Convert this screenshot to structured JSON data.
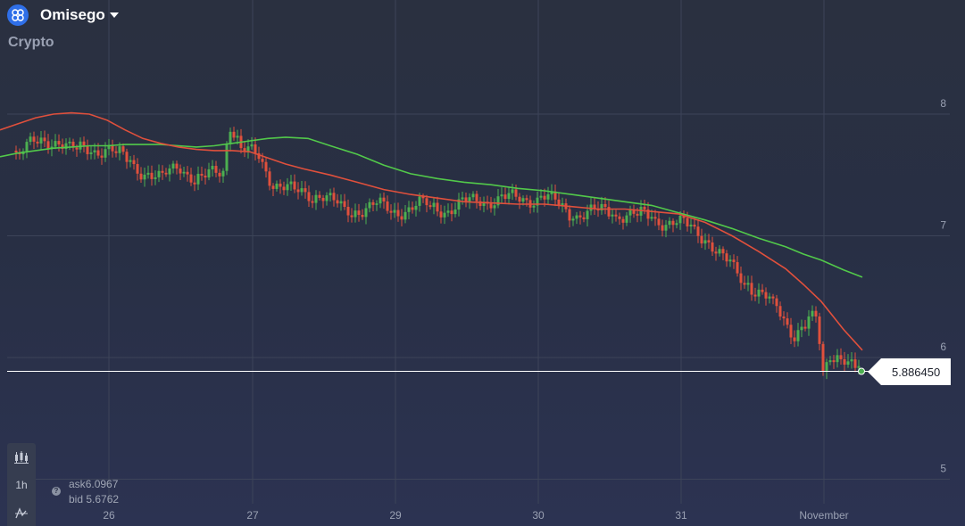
{
  "header": {
    "asset_name": "Omisego",
    "category": "Crypto",
    "logo_icon": "omisego-logo-icon"
  },
  "toolbar": {
    "timeframe_label": "1h",
    "chart_type_icon": "candlestick-chart-icon",
    "indicator_icon": "indicator-icon"
  },
  "quotes": {
    "ask_label": "ask",
    "ask_value": "6.0967",
    "bid_label": "bid",
    "bid_value": "5.6762"
  },
  "current_price": "5.886450",
  "colors": {
    "up": "#4caf50",
    "down": "#e0503c",
    "ma_fast": "#e0503c",
    "ma_slow": "#52c94a",
    "grid": "#3d4459"
  },
  "chart_data": {
    "type": "candlestick",
    "x_tick_labels": [
      "26",
      "27",
      "29",
      "30",
      "31",
      "November"
    ],
    "y_tick_labels": [
      "8",
      "7",
      "6",
      "5"
    ],
    "ylim": [
      4.9,
      8.5
    ],
    "grid": true,
    "current_price": 5.88645,
    "series": [
      {
        "name": "",
        "type": "line",
        "color": "#52c94a",
        "values": [
          [
            0,
            7.65
          ],
          [
            20,
            7.68
          ],
          [
            40,
            7.7
          ],
          [
            60,
            7.72
          ],
          [
            80,
            7.73
          ],
          [
            100,
            7.74
          ],
          [
            120,
            7.74
          ],
          [
            140,
            7.75
          ],
          [
            160,
            7.75
          ],
          [
            180,
            7.75
          ],
          [
            200,
            7.74
          ],
          [
            220,
            7.73
          ],
          [
            240,
            7.74
          ],
          [
            260,
            7.76
          ],
          [
            280,
            7.78
          ],
          [
            300,
            7.8
          ],
          [
            320,
            7.81
          ],
          [
            345,
            7.8
          ],
          [
            370,
            7.74
          ],
          [
            400,
            7.67
          ],
          [
            430,
            7.58
          ],
          [
            460,
            7.51
          ],
          [
            490,
            7.47
          ],
          [
            520,
            7.44
          ],
          [
            550,
            7.42
          ],
          [
            580,
            7.39
          ],
          [
            610,
            7.37
          ],
          [
            640,
            7.34
          ],
          [
            670,
            7.31
          ],
          [
            700,
            7.28
          ],
          [
            730,
            7.25
          ],
          [
            760,
            7.19
          ],
          [
            790,
            7.13
          ],
          [
            820,
            7.06
          ],
          [
            850,
            6.98
          ],
          [
            880,
            6.91
          ],
          [
            900,
            6.85
          ],
          [
            920,
            6.8
          ],
          [
            945,
            6.72
          ],
          [
            966,
            6.66
          ]
        ]
      },
      {
        "name": "",
        "type": "line",
        "color": "#e0503c",
        "values": [
          [
            0,
            7.87
          ],
          [
            20,
            7.92
          ],
          [
            40,
            7.97
          ],
          [
            60,
            8.0
          ],
          [
            80,
            8.01
          ],
          [
            100,
            8.0
          ],
          [
            120,
            7.95
          ],
          [
            140,
            7.87
          ],
          [
            160,
            7.8
          ],
          [
            180,
            7.76
          ],
          [
            200,
            7.73
          ],
          [
            220,
            7.71
          ],
          [
            240,
            7.7
          ],
          [
            260,
            7.7
          ],
          [
            280,
            7.69
          ],
          [
            300,
            7.64
          ],
          [
            320,
            7.59
          ],
          [
            340,
            7.55
          ],
          [
            370,
            7.5
          ],
          [
            400,
            7.44
          ],
          [
            430,
            7.38
          ],
          [
            460,
            7.34
          ],
          [
            490,
            7.31
          ],
          [
            520,
            7.28
          ],
          [
            550,
            7.27
          ],
          [
            580,
            7.26
          ],
          [
            610,
            7.26
          ],
          [
            640,
            7.24
          ],
          [
            670,
            7.22
          ],
          [
            700,
            7.22
          ],
          [
            730,
            7.2
          ],
          [
            760,
            7.18
          ],
          [
            790,
            7.11
          ],
          [
            820,
            7.0
          ],
          [
            850,
            6.87
          ],
          [
            880,
            6.73
          ],
          [
            900,
            6.6
          ],
          [
            920,
            6.46
          ],
          [
            945,
            6.23
          ],
          [
            966,
            6.06
          ]
        ]
      }
    ],
    "candles_note": "hourly OHLC candles from Oct 25 to Nov 1"
  }
}
